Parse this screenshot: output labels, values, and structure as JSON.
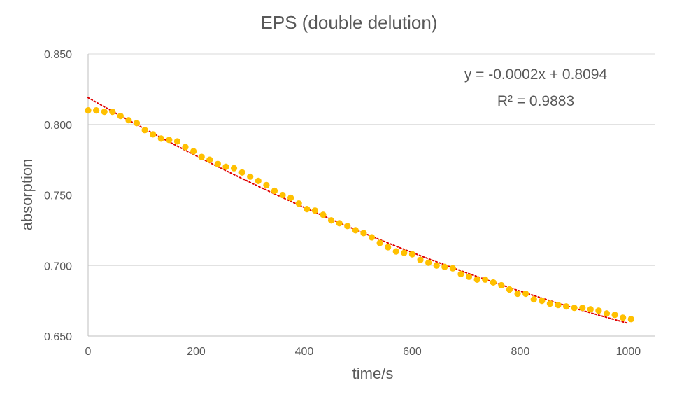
{
  "chart_data": {
    "type": "scatter",
    "title": "EPS (double delution)",
    "xlabel": "time/s",
    "ylabel": "absorption",
    "xlim": [
      0,
      1050
    ],
    "ylim": [
      0.65,
      0.85
    ],
    "x_ticks": [
      "0",
      "200",
      "400",
      "600",
      "800",
      "1000"
    ],
    "y_ticks": [
      "0.650",
      "0.700",
      "0.750",
      "0.800",
      "0.850"
    ],
    "grid": "horizontal",
    "legend": "none",
    "marker_color": "#FFC000",
    "trendline_color": "#E00000",
    "trendline": {
      "type": "polynomial",
      "style": "dotted",
      "start": [
        0,
        0.819
      ],
      "end": [
        1000,
        0.659
      ],
      "equation": "y = -0.0002x + 0.8094",
      "r_squared": "R² = 0.9883"
    },
    "series": [
      {
        "x": [
          0,
          15,
          30,
          45,
          60,
          75,
          90,
          105,
          120,
          135,
          150,
          165,
          180,
          195,
          210,
          225,
          240,
          255,
          270,
          285,
          300,
          315,
          330,
          345,
          360,
          375,
          390,
          405,
          420,
          435,
          450,
          465,
          480,
          495,
          510,
          525,
          540,
          555,
          570,
          585,
          600,
          615,
          630,
          645,
          660,
          675,
          690,
          705,
          720,
          735,
          750,
          765,
          780,
          795,
          810,
          825,
          840,
          855,
          870,
          885,
          900,
          915,
          930,
          945,
          960,
          975,
          990,
          1005
        ],
        "values": [
          0.81,
          0.81,
          0.809,
          0.809,
          0.806,
          0.803,
          0.801,
          0.796,
          0.793,
          0.79,
          0.789,
          0.788,
          0.784,
          0.781,
          0.777,
          0.775,
          0.772,
          0.77,
          0.769,
          0.766,
          0.763,
          0.76,
          0.757,
          0.753,
          0.75,
          0.748,
          0.744,
          0.74,
          0.739,
          0.736,
          0.732,
          0.73,
          0.728,
          0.725,
          0.723,
          0.72,
          0.716,
          0.713,
          0.71,
          0.709,
          0.708,
          0.704,
          0.702,
          0.7,
          0.699,
          0.698,
          0.694,
          0.692,
          0.69,
          0.69,
          0.688,
          0.686,
          0.683,
          0.68,
          0.68,
          0.676,
          0.675,
          0.673,
          0.672,
          0.671,
          0.67,
          0.67,
          0.669,
          0.668,
          0.666,
          0.665,
          0.663,
          0.662
        ]
      }
    ]
  }
}
